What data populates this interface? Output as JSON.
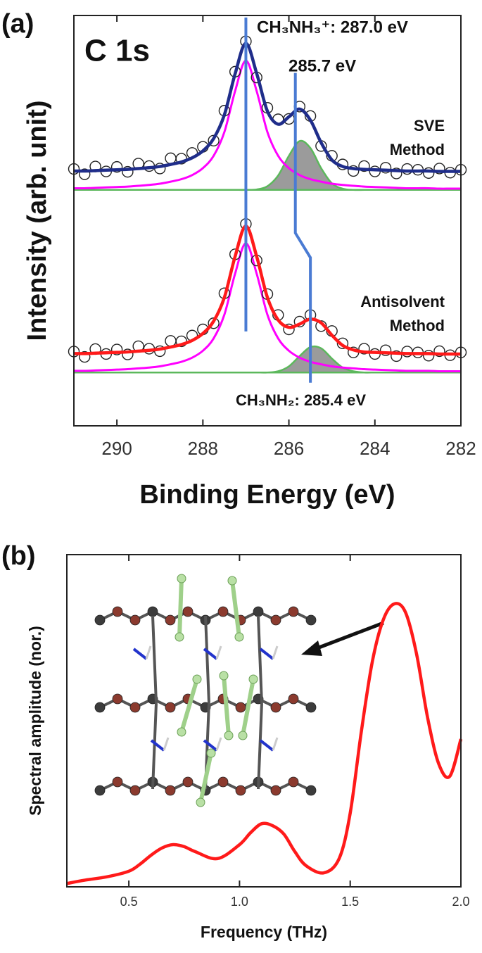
{
  "chart_data": [
    {
      "type": "line",
      "panel_label": "(a)",
      "inset_label": "C 1s",
      "x_label": "Binding Energy (eV)",
      "y_label": "Intensity (arb. unit)",
      "xlim": [
        291,
        282
      ],
      "xticks": [
        290,
        288,
        286,
        284,
        282
      ],
      "ylim": [
        0,
        10
      ],
      "x": [
        291,
        290.75,
        290.5,
        290.25,
        290,
        289.75,
        289.5,
        289.25,
        289,
        288.75,
        288.5,
        288.25,
        288,
        287.75,
        287.5,
        287.25,
        287,
        286.75,
        286.5,
        286.25,
        286,
        285.75,
        285.5,
        285.25,
        285,
        284.75,
        284.5,
        284.25,
        284,
        283.75,
        283.5,
        283.25,
        283,
        282.75,
        282.5,
        282.25,
        282
      ],
      "series": [
        {
          "style": "area",
          "color": "#5cb85c",
          "fill": "#8a8a8a",
          "values": [
            5.75,
            5.75,
            5.75,
            5.75,
            5.75,
            5.75,
            5.75,
            5.75,
            5.75,
            5.75,
            5.75,
            5.75,
            5.75,
            5.75,
            5.75,
            5.75,
            5.75,
            5.76,
            5.84,
            6.1,
            6.58,
            6.94,
            6.77,
            6.28,
            5.91,
            5.78,
            5.75,
            5.75,
            5.75,
            5.75,
            5.75,
            5.75,
            5.75,
            5.75,
            5.75,
            5.75,
            5.75
          ]
        },
        {
          "style": "area",
          "color": "#5cb85c",
          "fill": "#8a8a8a",
          "values": [
            1.3,
            1.3,
            1.3,
            1.3,
            1.3,
            1.3,
            1.3,
            1.3,
            1.3,
            1.3,
            1.3,
            1.3,
            1.3,
            1.3,
            1.3,
            1.3,
            1.3,
            1.3,
            1.3,
            1.33,
            1.45,
            1.7,
            1.92,
            1.89,
            1.64,
            1.42,
            1.33,
            1.3,
            1.3,
            1.3,
            1.3,
            1.3,
            1.3,
            1.3,
            1.3,
            1.3,
            1.3
          ]
        },
        {
          "style": "line",
          "color": "#ff00ff",
          "values": [
            5.79,
            5.79,
            5.8,
            5.81,
            5.82,
            5.83,
            5.85,
            5.87,
            5.9,
            5.95,
            6.01,
            6.11,
            6.28,
            6.58,
            7.16,
            8.16,
            8.9,
            8.16,
            7.16,
            6.58,
            6.28,
            6.11,
            6.01,
            5.95,
            5.9,
            5.87,
            5.85,
            5.83,
            5.82,
            5.81,
            5.8,
            5.79,
            5.79,
            5.79,
            5.78,
            5.78,
            5.78
          ]
        },
        {
          "style": "line",
          "color": "#ff00ff",
          "values": [
            1.34,
            1.34,
            1.35,
            1.36,
            1.37,
            1.38,
            1.4,
            1.42,
            1.45,
            1.5,
            1.56,
            1.66,
            1.83,
            2.13,
            2.71,
            3.71,
            4.45,
            3.71,
            2.71,
            2.13,
            1.83,
            1.66,
            1.56,
            1.5,
            1.45,
            1.42,
            1.4,
            1.38,
            1.37,
            1.36,
            1.35,
            1.34,
            1.34,
            1.34,
            1.33,
            1.33,
            1.33
          ]
        },
        {
          "style": "marker",
          "color": "#222222",
          "values": [
            6.26,
            6.13,
            6.32,
            6.2,
            6.31,
            6.19,
            6.39,
            6.33,
            6.27,
            6.52,
            6.51,
            6.65,
            6.8,
            6.95,
            7.68,
            8.63,
            9.37,
            8.49,
            7.75,
            7.47,
            7.48,
            7.78,
            7.55,
            6.82,
            6.58,
            6.37,
            6.21,
            6.33,
            6.2,
            6.29,
            6.15,
            6.26,
            6.24,
            6.16,
            6.27,
            6.17,
            6.24
          ]
        },
        {
          "style": "marker",
          "color": "#222222",
          "values": [
            1.81,
            1.68,
            1.87,
            1.75,
            1.86,
            1.74,
            1.94,
            1.88,
            1.82,
            2.07,
            2.06,
            2.2,
            2.35,
            2.5,
            3.23,
            4.18,
            4.92,
            4.03,
            3.21,
            2.7,
            2.35,
            2.54,
            2.7,
            2.43,
            2.31,
            2.01,
            1.79,
            1.88,
            1.75,
            1.84,
            1.7,
            1.81,
            1.79,
            1.71,
            1.82,
            1.72,
            1.79
          ]
        },
        {
          "style": "line",
          "color": "#1f2d8a",
          "values": [
            6.21,
            6.21,
            6.22,
            6.23,
            6.24,
            6.25,
            6.27,
            6.29,
            6.32,
            6.37,
            6.43,
            6.53,
            6.7,
            7.0,
            7.58,
            8.58,
            9.32,
            8.59,
            7.67,
            7.35,
            7.53,
            7.72,
            7.45,
            6.9,
            6.48,
            6.32,
            6.27,
            6.25,
            6.24,
            6.23,
            6.22,
            6.21,
            6.21,
            6.21,
            6.2,
            6.2,
            6.2
          ]
        },
        {
          "style": "line",
          "color": "#ff1a1a",
          "values": [
            1.76,
            1.76,
            1.77,
            1.78,
            1.79,
            1.8,
            1.82,
            1.84,
            1.87,
            1.92,
            1.98,
            2.08,
            2.25,
            2.55,
            3.13,
            4.13,
            4.87,
            4.13,
            3.13,
            2.58,
            2.4,
            2.48,
            2.6,
            2.51,
            2.21,
            1.96,
            1.85,
            1.8,
            1.79,
            1.78,
            1.77,
            1.76,
            1.76,
            1.76,
            1.75,
            1.75,
            1.75
          ]
        }
      ],
      "guides": [
        {
          "color": "#4a7bd3",
          "points": [
            [
              287.0,
              9.95
            ],
            [
              287.0,
              2.3
            ]
          ]
        },
        {
          "color": "#4a7bd3",
          "points": [
            [
              285.85,
              8.6
            ],
            [
              285.85,
              4.7
            ],
            [
              285.5,
              4.1
            ],
            [
              285.5,
              1.05
            ]
          ]
        }
      ],
      "annotations": [
        "CH₃NH₃⁺: 287.0 eV",
        "285.7 eV",
        "SVE",
        "Method",
        "Antisolvent",
        "Method",
        "CH₃NH₂: 285.4 eV"
      ]
    },
    {
      "type": "line",
      "panel_label": "(b)",
      "x_label": "Frequency (THz)",
      "y_label": "Spectral amplitude (nor.)",
      "xlim": [
        0.22,
        2.0
      ],
      "xticks": [
        0.5,
        {
          "value": 1,
          "label": "1.0"
        },
        1.5,
        {
          "value": 2,
          "label": "2.0"
        }
      ],
      "ylim": [
        0,
        1
      ],
      "x": [
        0.22,
        0.3,
        0.4,
        0.5,
        0.55,
        0.6,
        0.65,
        0.7,
        0.75,
        0.8,
        0.9,
        1.0,
        1.05,
        1.1,
        1.15,
        1.2,
        1.25,
        1.3,
        1.38,
        1.45,
        1.5,
        1.55,
        1.6,
        1.65,
        1.7,
        1.75,
        1.8,
        1.85,
        1.9,
        1.95,
        2.0
      ],
      "series": [
        {
          "style": "line",
          "color": "#ff1a1a",
          "values": [
            0.01,
            0.02,
            0.03,
            0.047,
            0.068,
            0.095,
            0.117,
            0.127,
            0.121,
            0.106,
            0.085,
            0.127,
            0.163,
            0.19,
            0.184,
            0.159,
            0.106,
            0.064,
            0.042,
            0.085,
            0.222,
            0.466,
            0.678,
            0.805,
            0.852,
            0.826,
            0.7,
            0.508,
            0.37,
            0.333,
            0.445
          ]
        }
      ]
    }
  ]
}
